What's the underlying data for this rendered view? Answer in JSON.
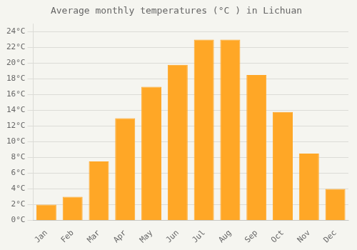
{
  "chart_data": {
    "type": "bar",
    "title": "Average monthly temperatures (°C ) in Lichuan",
    "categories": [
      "Jan",
      "Feb",
      "Mar",
      "Apr",
      "May",
      "Jun",
      "Jul",
      "Aug",
      "Sep",
      "Oct",
      "Nov",
      "Dec"
    ],
    "values": [
      2,
      3,
      7.5,
      13,
      17,
      19.8,
      23,
      23,
      18.5,
      13.8,
      8.5,
      4
    ],
    "color": "#FFA726",
    "ylim": [
      0,
      25
    ],
    "yticks": [
      {
        "value": 0,
        "label": "0°C"
      },
      {
        "value": 2,
        "label": "2°C"
      },
      {
        "value": 4,
        "label": "4°C"
      },
      {
        "value": 6,
        "label": "6°C"
      },
      {
        "value": 8,
        "label": "8°C"
      },
      {
        "value": 10,
        "label": "10°C"
      },
      {
        "value": 12,
        "label": "12°C"
      },
      {
        "value": 14,
        "label": "14°C"
      },
      {
        "value": 16,
        "label": "16°C"
      },
      {
        "value": 18,
        "label": "18°C"
      },
      {
        "value": 20,
        "label": "20°C"
      },
      {
        "value": 22,
        "label": "22°C"
      },
      {
        "value": 24,
        "label": "24°C"
      }
    ],
    "grid": true
  }
}
